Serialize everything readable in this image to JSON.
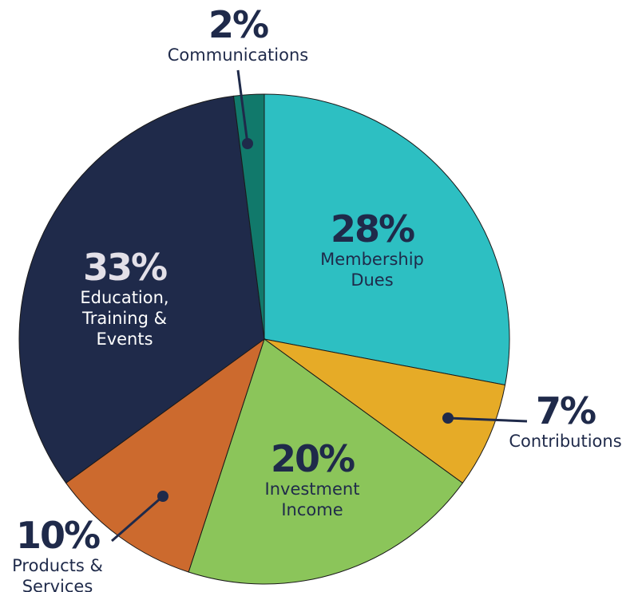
{
  "chart_data": {
    "type": "pie",
    "categories": [
      "Membership Dues",
      "Contributions",
      "Investment Income",
      "Products & Services",
      "Education, Training & Events",
      "Communications"
    ],
    "values": [
      28,
      7,
      20,
      10,
      33,
      2
    ],
    "value_labels": [
      "28%",
      "7%",
      "20%",
      "10%",
      "33%",
      "2%"
    ],
    "colors": [
      "#2dbfc2",
      "#e6ab27",
      "#8bc55a",
      "#cc6a2e",
      "#1f2a4a",
      "#11796b"
    ]
  }
}
